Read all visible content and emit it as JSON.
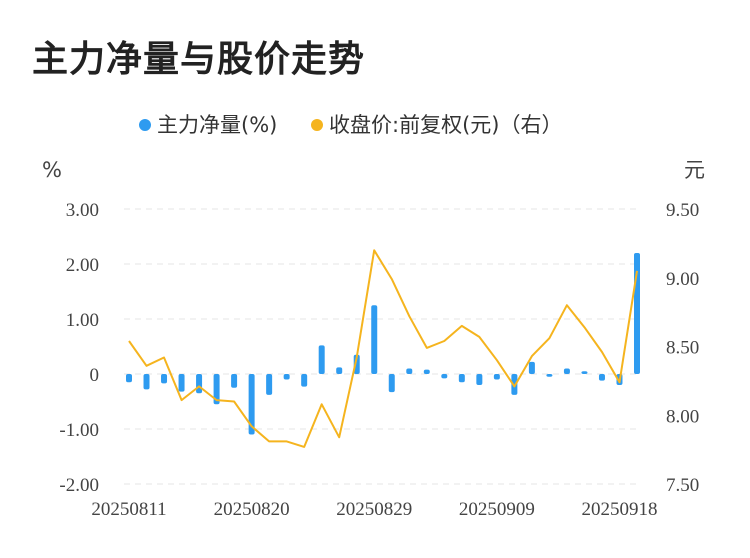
{
  "title": "主力净量与股价走势",
  "chart_data": {
    "type": "bar+line",
    "legend": [
      {
        "name": "主力净量(%)",
        "color": "#2e9bf0"
      },
      {
        "name": "收盘价:前复权(元)（右）",
        "color": "#f5b41e"
      }
    ],
    "ylabel_left": "%",
    "ylabel_right": "元",
    "ylim_left": [
      -2,
      3
    ],
    "ylim_right": [
      7.5,
      9.5
    ],
    "yticks_left": [
      "3.00",
      "2.00",
      "1.00",
      "0",
      "-1.00",
      "-2.00"
    ],
    "yticks_right": [
      "9.50",
      "9.00",
      "8.50",
      "8.00",
      "7.50"
    ],
    "x_tick_labels": [
      {
        "label": "20250811",
        "index": 0
      },
      {
        "label": "20250820",
        "index": 7
      },
      {
        "label": "20250829",
        "index": 14
      },
      {
        "label": "20250909",
        "index": 21
      },
      {
        "label": "20250918",
        "index": 28
      }
    ],
    "series": [
      {
        "name": "主力净量(%)",
        "type": "bar",
        "values": [
          -0.15,
          -0.28,
          -0.17,
          -0.32,
          -0.35,
          -0.55,
          -0.25,
          -1.1,
          -0.38,
          -0.1,
          -0.23,
          0.52,
          0.12,
          0.35,
          1.25,
          -0.33,
          0.1,
          0.08,
          -0.08,
          -0.15,
          -0.2,
          -0.1,
          -0.38,
          0.22,
          -0.05,
          0.1,
          0.05,
          -0.12,
          -0.2,
          2.2
        ]
      },
      {
        "name": "收盘价:前复权(元)（右）",
        "type": "line",
        "values": [
          8.54,
          8.36,
          8.42,
          8.11,
          8.21,
          8.11,
          8.1,
          7.92,
          7.81,
          7.81,
          7.77,
          8.08,
          7.84,
          8.42,
          9.2,
          8.99,
          8.72,
          8.49,
          8.54,
          8.65,
          8.57,
          8.4,
          8.21,
          8.43,
          8.56,
          8.8,
          8.64,
          8.46,
          8.24,
          9.05
        ]
      }
    ]
  }
}
